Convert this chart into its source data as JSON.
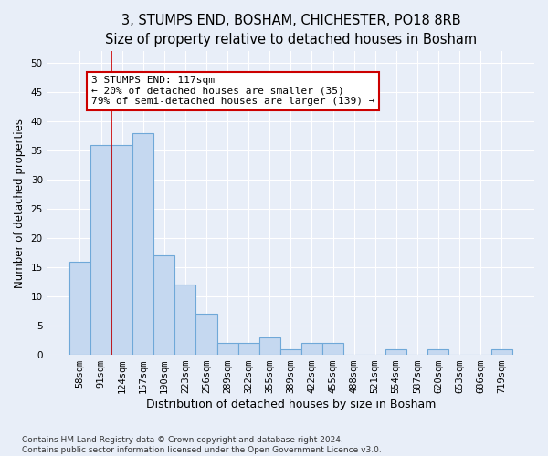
{
  "title": "3, STUMPS END, BOSHAM, CHICHESTER, PO18 8RB",
  "subtitle": "Size of property relative to detached houses in Bosham",
  "xlabel": "Distribution of detached houses by size in Bosham",
  "ylabel": "Number of detached properties",
  "bar_values": [
    16,
    36,
    36,
    38,
    17,
    12,
    7,
    2,
    2,
    3,
    1,
    2,
    2,
    0,
    0,
    1,
    0,
    1,
    0,
    0,
    1
  ],
  "bar_labels": [
    "58sqm",
    "91sqm",
    "124sqm",
    "157sqm",
    "190sqm",
    "223sqm",
    "256sqm",
    "289sqm",
    "322sqm",
    "355sqm",
    "389sqm",
    "422sqm",
    "455sqm",
    "488sqm",
    "521sqm",
    "554sqm",
    "587sqm",
    "620sqm",
    "653sqm",
    "686sqm",
    "719sqm"
  ],
  "bar_color": "#c5d8f0",
  "bar_edge_color": "#6fa8d8",
  "bar_edge_width": 0.8,
  "vline_color": "#cc0000",
  "vline_x": 1.5,
  "annotation_text": "3 STUMPS END: 117sqm\n← 20% of detached houses are smaller (35)\n79% of semi-detached houses are larger (139) →",
  "annotation_box_color": "#ffffff",
  "annotation_box_edge_color": "#cc0000",
  "ylim": [
    0,
    52
  ],
  "yticks": [
    0,
    5,
    10,
    15,
    20,
    25,
    30,
    35,
    40,
    45,
    50
  ],
  "title_fontsize": 10.5,
  "xlabel_fontsize": 9,
  "ylabel_fontsize": 8.5,
  "tick_fontsize": 7.5,
  "annotation_fontsize": 8,
  "footer_text": "Contains HM Land Registry data © Crown copyright and database right 2024.\nContains public sector information licensed under the Open Government Licence v3.0.",
  "footer_fontsize": 6.5,
  "background_color": "#e8eef8",
  "plot_bg_color": "#e8eef8",
  "grid_color": "#ffffff"
}
